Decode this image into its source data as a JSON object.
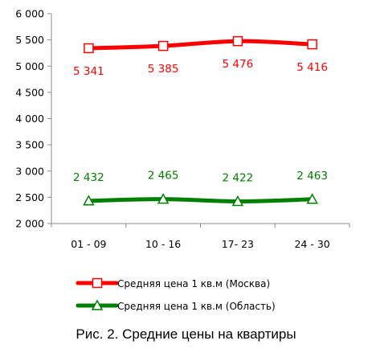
{
  "chart_data": {
    "type": "line",
    "categories": [
      "01 - 09",
      "10 - 16",
      "17- 23",
      "24 - 30"
    ],
    "ylim": [
      2000,
      6000
    ],
    "yticks": [
      2000,
      2500,
      3000,
      3500,
      4000,
      4500,
      5000,
      5500,
      6000
    ],
    "ytick_labels": [
      "2 000",
      "2 500",
      "3 000",
      "3 500",
      "4 000",
      "4 500",
      "5 000",
      "5 500",
      "6 000"
    ],
    "grid": false,
    "legend_position": "bottom",
    "series": [
      {
        "name": "Средняя цена 1 кв.м (Москва)",
        "values": [
          5341,
          5385,
          5476,
          5416
        ],
        "labels": [
          "5 341",
          "5 385",
          "5 476",
          "5 416"
        ],
        "color": "#ff0000",
        "marker": "square"
      },
      {
        "name": "Средняя цена 1 кв.м (Область)",
        "values": [
          2432,
          2465,
          2422,
          2463
        ],
        "labels": [
          "2 432",
          "2 465",
          "2 422",
          "2 463"
        ],
        "color": "#008000",
        "marker": "triangle"
      }
    ]
  },
  "caption": "Рис. 2. Средние цены на квартиры"
}
